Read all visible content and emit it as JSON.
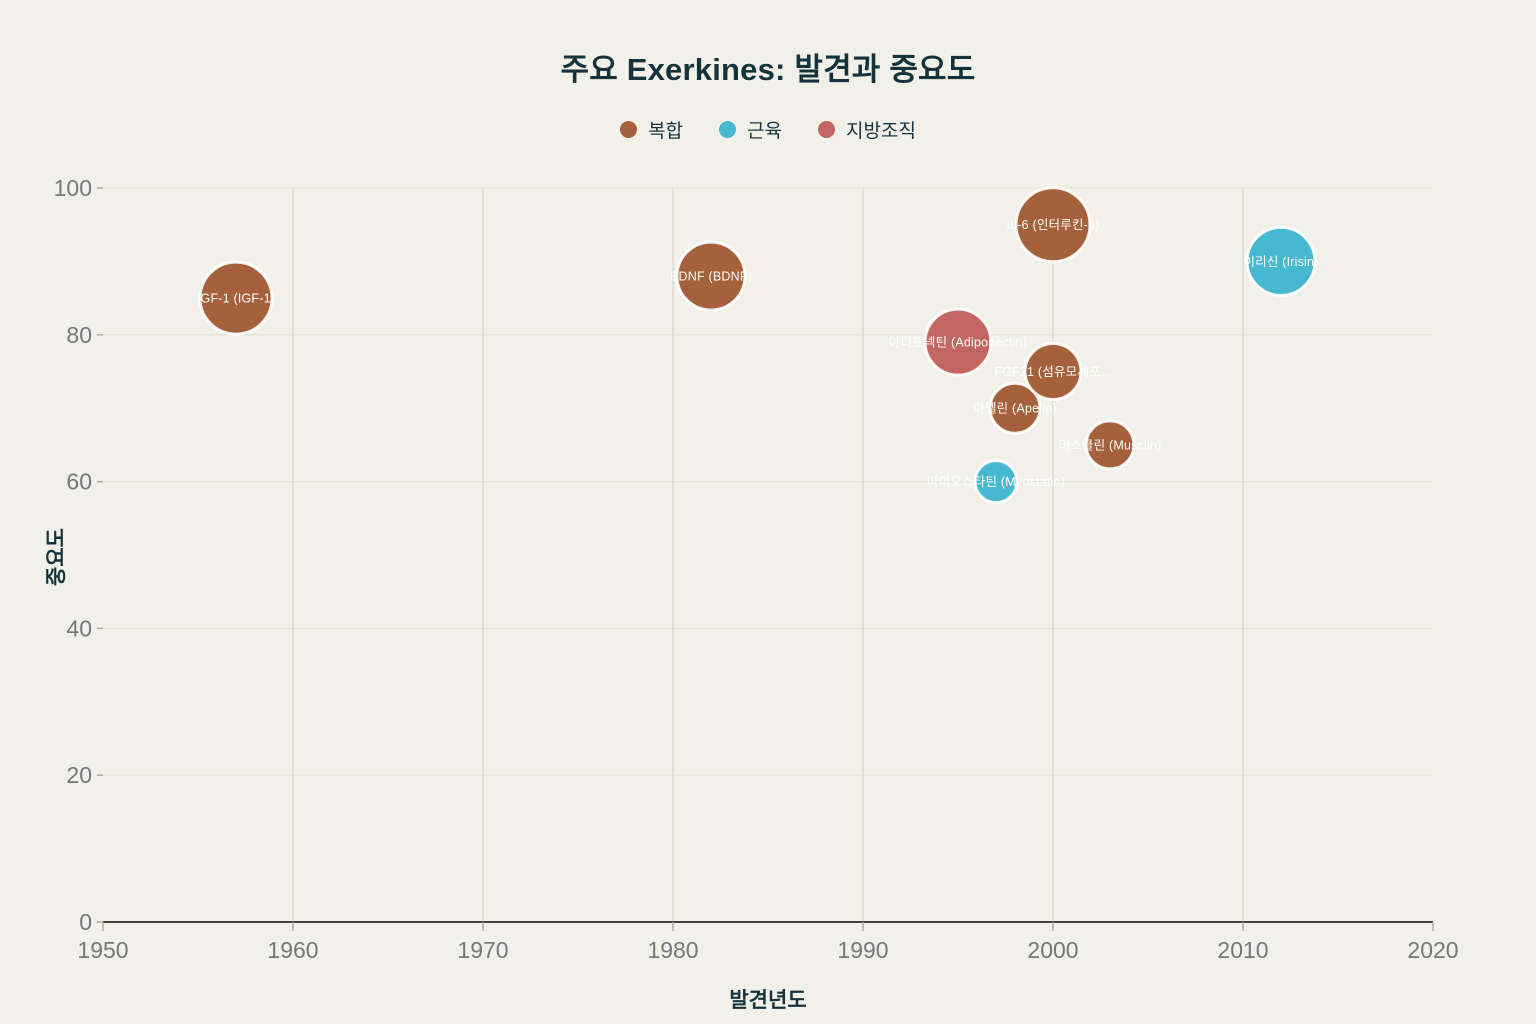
{
  "title": "주요 Exerkines: 발견과 중요도",
  "legend": [
    {
      "label": "복합",
      "color": "#a5603c"
    },
    {
      "label": "근육",
      "color": "#46b8cf"
    },
    {
      "label": "지방조직",
      "color": "#c26662"
    }
  ],
  "chart_data": {
    "type": "scatter",
    "title": "주요 Exerkines: 발견과 중요도",
    "xlabel": "발견년도",
    "ylabel": "중요도",
    "xlim": [
      1950,
      2020
    ],
    "ylim": [
      0,
      100
    ],
    "x_ticks": [
      1950,
      1960,
      1970,
      1980,
      1990,
      2000,
      2010,
      2020
    ],
    "y_ticks": [
      0,
      20,
      40,
      60,
      80,
      100
    ],
    "grid": true,
    "legend_position": "top-center",
    "groups": [
      {
        "name": "복합",
        "color": "#a5603c"
      },
      {
        "name": "근육",
        "color": "#46b8cf"
      },
      {
        "name": "지방조직",
        "color": "#c26662"
      }
    ],
    "points": [
      {
        "label": "IGF-1 (IGF-1)",
        "group": "복합",
        "x": 1957,
        "y": 85,
        "r": 36
      },
      {
        "label": "BDNF (BDNF)",
        "group": "복합",
        "x": 1982,
        "y": 88,
        "r": 34
      },
      {
        "label": "아디포넥틴 (Adiponectin)",
        "group": "지방조직",
        "x": 1995,
        "y": 79,
        "r": 33
      },
      {
        "label": "마이오스타틴 (Myostatin)",
        "group": "근육",
        "x": 1997,
        "y": 60,
        "r": 21
      },
      {
        "label": "아펠린 (Apelin)",
        "group": "복합",
        "x": 1998,
        "y": 70,
        "r": 25
      },
      {
        "label": "IL-6 (인터루킨-6)",
        "group": "복합",
        "x": 2000,
        "y": 95,
        "r": 37
      },
      {
        "label": "FGF21 (섬유모세포...",
        "group": "복합",
        "x": 2000,
        "y": 75,
        "r": 28
      },
      {
        "label": "머스클린 (Musclin)",
        "group": "복합",
        "x": 2003,
        "y": 65,
        "r": 24
      },
      {
        "label": "이리신 (Irisin)",
        "group": "근육",
        "x": 2012,
        "y": 90,
        "r": 34
      }
    ]
  },
  "colors": {
    "background": "#f2f1e9",
    "title_text": "#15333d",
    "tick_text": "#73787a",
    "axis_line": "#45443f",
    "grid_vertical": "#d8d7ca",
    "grid_horizontal": "#e4e3d6",
    "tick_mark": "#aeada0",
    "bubble_label": "#ffffff"
  }
}
